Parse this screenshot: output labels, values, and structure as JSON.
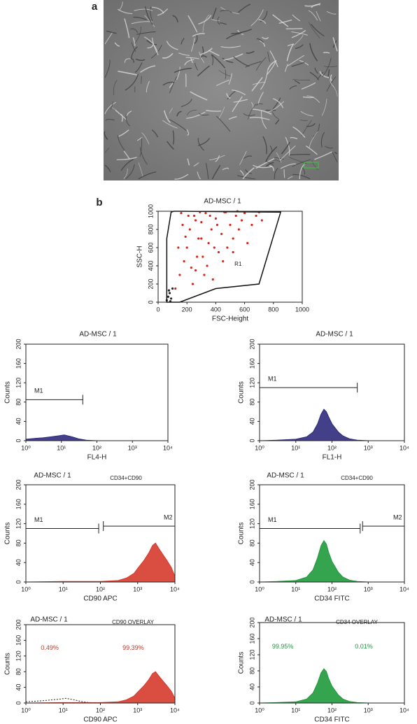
{
  "panels": [
    "a",
    "b"
  ],
  "chart_data": [
    {
      "type": "scatter",
      "title": "AD-MSC / 1",
      "xlabel": "FSC-Height",
      "ylabel": "SSC-H",
      "xlim": [
        0,
        1000
      ],
      "ylim": [
        0,
        1000
      ],
      "xticks": [
        0,
        200,
        400,
        600,
        800,
        1000
      ],
      "yticks": [
        0,
        200,
        400,
        600,
        800,
        1000
      ],
      "series": [
        {
          "color": "#d9261c",
          "x": [
            120,
            150,
            180,
            200,
            220,
            250,
            260,
            280,
            300,
            310,
            330,
            350,
            370,
            380,
            400,
            420,
            440,
            460,
            480,
            500,
            520,
            540,
            560,
            580,
            600,
            620,
            650,
            680,
            700,
            720,
            140,
            170,
            210,
            240,
            270,
            300,
            340,
            390,
            450,
            520,
            160,
            190,
            230,
            260,
            290,
            320,
            360,
            410,
            470,
            550
          ],
          "values": [
            150,
            300,
            450,
            600,
            800,
            950,
            350,
            700,
            880,
            500,
            980,
            650,
            800,
            250,
            920,
            550,
            750,
            990,
            600,
            850,
            700,
            950,
            800,
            900,
            980,
            650,
            850,
            950,
            990,
            900,
            600,
            850,
            950,
            200,
            500,
            700,
            400,
            600,
            450,
            550,
            980,
            720,
            380,
            900,
            990,
            300,
            950,
            850,
            990,
            1000
          ]
        },
        {
          "color": "#222222",
          "x": [
            60,
            70,
            80,
            90,
            100,
            75,
            85
          ],
          "values": [
            20,
            60,
            100,
            40,
            150,
            130,
            10
          ]
        }
      ],
      "gate": {
        "label": "R1",
        "x": [
          60,
          90,
          110,
          850,
          700,
          400,
          150,
          60
        ],
        "y": [
          700,
          990,
          1000,
          990,
          200,
          150,
          0,
          0
        ]
      }
    },
    {
      "type": "area",
      "title": "AD-MSC / 1",
      "xlabel": "FL4-H",
      "ylabel": "Counts",
      "log_x": true,
      "xlim": [
        1,
        10000
      ],
      "ylim": [
        0,
        200
      ],
      "xticks": [
        {
          "value": 1,
          "label": "10⁰"
        },
        {
          "value": 10,
          "label": "10¹"
        },
        {
          "value": 100,
          "label": "10²"
        },
        {
          "value": 1000,
          "label": "10³"
        },
        {
          "value": 10000,
          "label": "10⁴"
        }
      ],
      "yticks": [
        0,
        40,
        80,
        120,
        160,
        200
      ],
      "series": [
        {
          "color": "#2f2b7c",
          "x": [
            1,
            2,
            3,
            5,
            8,
            12,
            20,
            30,
            50,
            100,
            1000,
            10000
          ],
          "values": [
            3,
            5,
            6,
            8,
            10,
            12,
            8,
            4,
            1,
            0,
            0,
            0
          ]
        }
      ],
      "markers": [
        {
          "label": "M1",
          "x": [
            1,
            40
          ],
          "y": 85
        }
      ]
    },
    {
      "type": "area",
      "title": "AD-MSC / 1",
      "xlabel": "FL1-H",
      "ylabel": "Counts",
      "log_x": true,
      "xlim": [
        1,
        10000
      ],
      "ylim": [
        0,
        200
      ],
      "xticks": [
        {
          "value": 1,
          "label": "10⁰"
        },
        {
          "value": 10,
          "label": "10¹"
        },
        {
          "value": 100,
          "label": "10²"
        },
        {
          "value": 1000,
          "label": "10³"
        },
        {
          "value": 10000,
          "label": "10⁴"
        }
      ],
      "yticks": [
        0,
        40,
        80,
        120,
        160,
        200
      ],
      "series": [
        {
          "color": "#2f2b7c",
          "x": [
            1,
            3,
            10,
            20,
            30,
            40,
            50,
            60,
            70,
            80,
            100,
            150,
            200,
            300,
            500,
            1000,
            10000
          ],
          "values": [
            0,
            1,
            3,
            8,
            18,
            35,
            55,
            65,
            60,
            50,
            35,
            18,
            10,
            4,
            1,
            0,
            0
          ]
        }
      ],
      "markers": [
        {
          "label": "M1",
          "x": [
            1,
            500
          ],
          "y": 110
        }
      ]
    },
    {
      "type": "area",
      "title": "AD-MSC / 1",
      "subtitle": "CD34+CD90",
      "xlabel": "CD90 APC",
      "ylabel": "Counts",
      "log_x": true,
      "xlim": [
        1,
        10000
      ],
      "ylim": [
        0,
        200
      ],
      "xticks": [
        {
          "value": 1,
          "label": "10⁰"
        },
        {
          "value": 10,
          "label": "10¹"
        },
        {
          "value": 100,
          "label": "10²"
        },
        {
          "value": 1000,
          "label": "10³"
        },
        {
          "value": 10000,
          "label": "10⁴"
        }
      ],
      "yticks": [
        0,
        40,
        80,
        120,
        160,
        200
      ],
      "series": [
        {
          "color": "#d63a2c",
          "x": [
            1,
            10,
            100,
            300,
            500,
            800,
            1000,
            1500,
            2000,
            2500,
            3000,
            4000,
            6000,
            8000,
            10000
          ],
          "values": [
            0,
            1,
            1,
            3,
            8,
            18,
            28,
            45,
            60,
            75,
            80,
            65,
            45,
            30,
            12
          ]
        }
      ],
      "markers": [
        {
          "label": "M1",
          "x": [
            1,
            90
          ],
          "y": 110
        },
        {
          "label": "M2",
          "x": [
            120,
            10000
          ],
          "y": 115
        }
      ]
    },
    {
      "type": "area",
      "title": "AD-MSC / 1",
      "subtitle": "CD34+CD90",
      "xlabel": "CD34 FITC",
      "ylabel": "Counts",
      "log_x": true,
      "xlim": [
        1,
        10000
      ],
      "ylim": [
        0,
        200
      ],
      "xticks": [
        {
          "value": 1,
          "label": "10⁰"
        },
        {
          "value": 10,
          "label": "10¹"
        },
        {
          "value": 100,
          "label": "10²"
        },
        {
          "value": 1000,
          "label": "10³"
        },
        {
          "value": 10000,
          "label": "10⁴"
        }
      ],
      "yticks": [
        0,
        40,
        80,
        120,
        160,
        200
      ],
      "series": [
        {
          "color": "#1f9a3c",
          "x": [
            1,
            3,
            10,
            20,
            30,
            40,
            50,
            60,
            70,
            80,
            100,
            150,
            200,
            300,
            500,
            1000,
            10000
          ],
          "values": [
            0,
            1,
            3,
            10,
            25,
            50,
            75,
            85,
            78,
            62,
            42,
            20,
            10,
            4,
            1,
            0,
            0
          ]
        }
      ],
      "markers": [
        {
          "label": "M1",
          "x": [
            1,
            600
          ],
          "y": 110
        },
        {
          "label": "M2",
          "x": [
            700,
            10000
          ],
          "y": 115
        }
      ]
    },
    {
      "type": "area",
      "title": "AD-MSC / 1",
      "subtitle": "CD90 OVERLAY",
      "xlabel": "CD90 APC",
      "ylabel": "Counts",
      "log_x": true,
      "xlim": [
        1,
        10000
      ],
      "ylim": [
        0,
        200
      ],
      "xticks": [
        {
          "value": 1,
          "label": "10⁰"
        },
        {
          "value": 10,
          "label": "10¹"
        },
        {
          "value": 100,
          "label": "10²"
        },
        {
          "value": 1000,
          "label": "10³"
        },
        {
          "value": 10000,
          "label": "10⁴"
        }
      ],
      "yticks": [
        0,
        40,
        80,
        120,
        160,
        200
      ],
      "series": [
        {
          "color": "#222222",
          "dashed": true,
          "x": [
            1,
            2,
            3,
            5,
            8,
            12,
            20,
            30,
            50,
            100,
            1000,
            10000
          ],
          "values": [
            3,
            5,
            6,
            8,
            10,
            12,
            8,
            4,
            1,
            0,
            0,
            0
          ]
        },
        {
          "color": "#d63a2c",
          "x": [
            1,
            10,
            100,
            300,
            500,
            800,
            1000,
            1500,
            2000,
            2500,
            3000,
            4000,
            6000,
            8000,
            10000
          ],
          "values": [
            0,
            1,
            1,
            3,
            8,
            18,
            28,
            45,
            60,
            75,
            80,
            65,
            45,
            30,
            12
          ]
        }
      ],
      "annotations": [
        {
          "text": "0.49%",
          "color": "#c0392b"
        },
        {
          "text": "99.39%",
          "color": "#c0392b"
        }
      ]
    },
    {
      "type": "area",
      "title": "AD-MSC / 1",
      "subtitle": "CD34 OVERLAY",
      "xlabel": "CD34 FITC",
      "ylabel": "Counts",
      "log_x": true,
      "xlim": [
        1,
        10000
      ],
      "ylim": [
        0,
        200
      ],
      "xticks": [
        {
          "value": 1,
          "label": "10⁰"
        },
        {
          "value": 10,
          "label": "10¹"
        },
        {
          "value": 100,
          "label": "10²"
        },
        {
          "value": 1000,
          "label": "10³"
        },
        {
          "value": 10000,
          "label": "10⁴"
        }
      ],
      "yticks": [
        0,
        40,
        80,
        120,
        160,
        200
      ],
      "series": [
        {
          "color": "#1f9a3c",
          "x": [
            1,
            3,
            10,
            20,
            30,
            40,
            50,
            60,
            70,
            80,
            100,
            150,
            200,
            300,
            500,
            1000,
            10000
          ],
          "values": [
            0,
            1,
            3,
            10,
            25,
            50,
            75,
            85,
            78,
            62,
            42,
            20,
            10,
            4,
            1,
            0,
            0
          ]
        }
      ],
      "annotations": [
        {
          "text": "99.95%",
          "color": "#1f9a3c"
        },
        {
          "text": "0.01%",
          "color": "#1f9a3c"
        }
      ]
    }
  ]
}
